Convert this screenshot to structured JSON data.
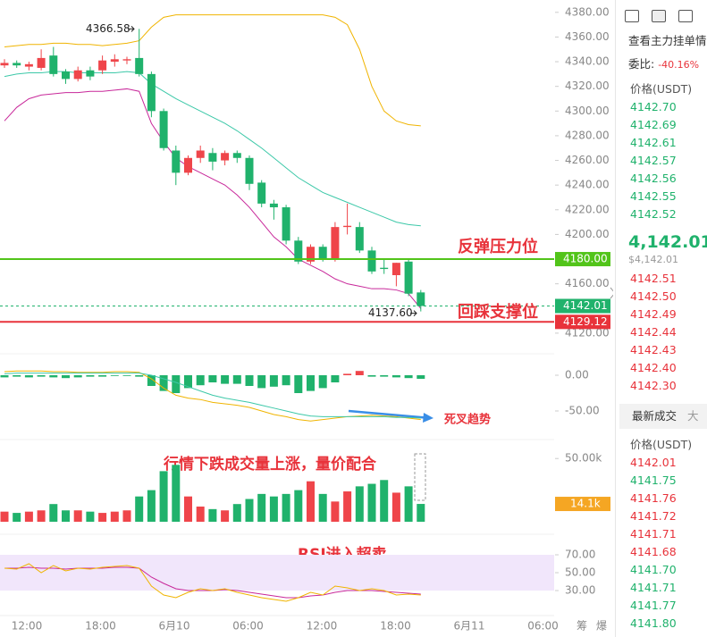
{
  "chart_data": {
    "type": "candlestick",
    "up_color": "#ef454a",
    "down_color": "#20b26c",
    "ylim": [
      4104,
      4390
    ],
    "yticks": [
      {
        "value": 4380,
        "label": "4380.00"
      },
      {
        "value": 4360,
        "label": "4360.00"
      },
      {
        "value": 4340,
        "label": "4340.00"
      },
      {
        "value": 4320,
        "label": "4320.00"
      },
      {
        "value": 4300,
        "label": "4300.00"
      },
      {
        "value": 4280,
        "label": "4280.00"
      },
      {
        "value": 4260,
        "label": "4260.00"
      },
      {
        "value": 4240,
        "label": "4240.00"
      },
      {
        "value": 4220,
        "label": "4220.00"
      },
      {
        "value": 4200,
        "label": "4200.00"
      },
      {
        "value": 4160,
        "label": "4160.00"
      },
      {
        "value": 4120,
        "label": "4120.00"
      }
    ],
    "candles": [
      {
        "open": 4337,
        "high": 4342,
        "low": 4335,
        "close": 4339
      },
      {
        "open": 4339,
        "high": 4341,
        "low": 4335,
        "close": 4337
      },
      {
        "open": 4336,
        "high": 4340,
        "low": 4333,
        "close": 4338
      },
      {
        "open": 4335,
        "high": 4350,
        "low": 4333,
        "close": 4343
      },
      {
        "open": 4345,
        "high": 4352,
        "low": 4328,
        "close": 4330
      },
      {
        "open": 4332,
        "high": 4334,
        "low": 4322,
        "close": 4326
      },
      {
        "open": 4326,
        "high": 4336,
        "low": 4324,
        "close": 4333
      },
      {
        "open": 4333,
        "high": 4336,
        "low": 4325,
        "close": 4328
      },
      {
        "open": 4333,
        "high": 4345,
        "low": 4330,
        "close": 4341
      },
      {
        "open": 4340,
        "high": 4346,
        "low": 4336,
        "close": 4342
      },
      {
        "open": 4341,
        "high": 4344,
        "low": 4338,
        "close": 4342
      },
      {
        "open": 4343,
        "high": 4366.58,
        "low": 4328,
        "close": 4330
      },
      {
        "open": 4330,
        "high": 4332,
        "low": 4295,
        "close": 4300
      },
      {
        "open": 4300,
        "high": 4302,
        "low": 4268,
        "close": 4270
      },
      {
        "open": 4268,
        "high": 4272,
        "low": 4240,
        "close": 4250
      },
      {
        "open": 4250,
        "high": 4264,
        "low": 4248,
        "close": 4262
      },
      {
        "open": 4262,
        "high": 4272,
        "low": 4258,
        "close": 4268
      },
      {
        "open": 4266,
        "high": 4270,
        "low": 4252,
        "close": 4259
      },
      {
        "open": 4260,
        "high": 4268,
        "low": 4256,
        "close": 4266
      },
      {
        "open": 4266,
        "high": 4268,
        "low": 4258,
        "close": 4262
      },
      {
        "open": 4262,
        "high": 4264,
        "low": 4236,
        "close": 4241
      },
      {
        "open": 4242,
        "high": 4244,
        "low": 4222,
        "close": 4225
      },
      {
        "open": 4225,
        "high": 4228,
        "low": 4212,
        "close": 4222
      },
      {
        "open": 4222,
        "high": 4224,
        "low": 4192,
        "close": 4195
      },
      {
        "open": 4195,
        "high": 4198,
        "low": 4176,
        "close": 4178
      },
      {
        "open": 4178,
        "high": 4192,
        "low": 4176,
        "close": 4190
      },
      {
        "open": 4190,
        "high": 4192,
        "low": 4178,
        "close": 4180
      },
      {
        "open": 4180,
        "high": 4210,
        "low": 4178,
        "close": 4206
      },
      {
        "open": 4206,
        "high": 4225,
        "low": 4200,
        "close": 4207
      },
      {
        "open": 4206,
        "high": 4210,
        "low": 4185,
        "close": 4187
      },
      {
        "open": 4187,
        "high": 4190,
        "low": 4168,
        "close": 4170
      },
      {
        "open": 4173,
        "high": 4180,
        "low": 4168,
        "close": 4172
      },
      {
        "open": 4167,
        "high": 4177,
        "low": 4158,
        "close": 4177
      },
      {
        "open": 4178,
        "high": 4180,
        "low": 4150,
        "close": 4152
      },
      {
        "open": 4153,
        "high": 4155,
        "low": 4137.6,
        "close": 4142.01
      }
    ],
    "bands": [
      {
        "color": "#f0b400",
        "values": [
          4352,
          4353,
          4354,
          4354,
          4355,
          4355,
          4354,
          4354,
          4353,
          4354,
          4355,
          4357,
          4368,
          4376,
          4378,
          4378,
          4378,
          4378,
          4378,
          4378,
          4378,
          4378,
          4378,
          4378,
          4378,
          4378,
          4378,
          4376,
          4370,
          4350,
          4320,
          4300,
          4292,
          4289,
          4288
        ]
      },
      {
        "color": "#3cc8a8",
        "values": [
          4328,
          4330,
          4331,
          4331,
          4332,
          4332,
          4331,
          4331,
          4331,
          4331,
          4332,
          4331,
          4322,
          4316,
          4310,
          4305,
          4300,
          4295,
          4290,
          4284,
          4277,
          4270,
          4262,
          4254,
          4246,
          4240,
          4234,
          4230,
          4226,
          4222,
          4218,
          4214,
          4210,
          4208,
          4207
        ]
      },
      {
        "color": "#c8289a",
        "values": [
          4292,
          4303,
          4310,
          4313,
          4314,
          4315,
          4315,
          4316,
          4316,
          4317,
          4318,
          4316,
          4290,
          4275,
          4262,
          4255,
          4250,
          4245,
          4240,
          4232,
          4222,
          4210,
          4198,
          4190,
          4180,
          4175,
          4170,
          4164,
          4160,
          4158,
          4156,
          4156,
          4155,
          4152,
          4140
        ]
      }
    ],
    "high_marker": {
      "value": 4366.58,
      "label": "4366.58"
    },
    "low_marker": {
      "value": 4137.6,
      "label": "4137.60"
    },
    "levels": [
      {
        "value": 4180,
        "label": "4180.00",
        "color": "#52c41a"
      },
      {
        "value": 4142.01,
        "label": "4142.01",
        "color": "#20b26c",
        "dashed": true
      },
      {
        "value": 4129.12,
        "label": "4129.12",
        "color": "#e8333b"
      }
    ],
    "annotations": [
      {
        "text": "反弹压力位",
        "color": "#e8333b"
      },
      {
        "text": "回踩支撑位",
        "color": "#e8333b"
      },
      {
        "text": "死叉趋势",
        "color": "#e8333b"
      },
      {
        "text": "行情下跌成交量上涨，量价配合",
        "color": "#e8333b"
      },
      {
        "text": "RSI进入超卖",
        "color": "#e8333b"
      }
    ],
    "macd": {
      "ylim": [
        -87.5,
        27.5
      ],
      "yticks": [
        {
          "value": 0,
          "label": "0.00"
        },
        {
          "value": -50,
          "label": "-50.00"
        }
      ],
      "histogram": [
        -3,
        -2,
        -3,
        -2,
        -3,
        -4,
        -3,
        -2,
        -2,
        -1,
        -1,
        -2,
        -15,
        -22,
        -25,
        -18,
        -14,
        -10,
        -12,
        -12,
        -15,
        -18,
        -16,
        -14,
        -25,
        -22,
        -18,
        -10,
        2,
        6,
        -2,
        -2,
        -3,
        -4,
        -5
      ],
      "lines": [
        {
          "color": "#f0b400",
          "values": [
            5,
            6,
            6,
            6,
            5,
            5,
            4,
            4,
            4,
            5,
            5,
            4,
            -5,
            -18,
            -28,
            -32,
            -34,
            -38,
            -40,
            -42,
            -45,
            -50,
            -55,
            -58,
            -62,
            -64,
            -62,
            -60,
            -58,
            -57,
            -56,
            -57,
            -58,
            -60,
            -62
          ]
        },
        {
          "color": "#3cc8a8",
          "values": [
            2,
            3,
            3,
            3,
            3,
            3,
            3,
            3,
            3,
            3,
            3,
            3,
            0,
            -5,
            -10,
            -16,
            -22,
            -28,
            -32,
            -35,
            -38,
            -42,
            -46,
            -50,
            -54,
            -57,
            -58,
            -58,
            -58,
            -58,
            -58,
            -58,
            -59,
            -59,
            -60
          ]
        }
      ]
    },
    "volume": {
      "ylim": [
        0,
        65
      ],
      "yticks": [
        {
          "value": 50,
          "label": "50.00k"
        }
      ],
      "values": [
        8,
        7,
        8,
        9,
        14,
        9,
        9,
        8,
        7,
        8,
        9,
        20,
        25,
        40,
        45,
        20,
        12,
        10,
        9,
        14,
        18,
        22,
        20,
        22,
        25,
        32,
        22,
        16,
        24,
        28,
        30,
        33,
        23,
        28,
        14.1
      ],
      "last": {
        "value": 14.1,
        "label": "14.1k",
        "color": "#f5a623"
      }
    },
    "rsi": {
      "ylim": [
        5,
        91
      ],
      "yticks": [
        {
          "value": 70,
          "label": "70.00"
        },
        {
          "value": 50,
          "label": "50.00"
        },
        {
          "value": 30,
          "label": "30.00"
        }
      ],
      "band": [
        30,
        70
      ],
      "band_color": "#f1e6fb",
      "lines": [
        {
          "color": "#c8289a",
          "values": [
            55,
            55,
            56,
            55,
            55,
            54,
            55,
            55,
            55,
            56,
            56,
            55,
            45,
            38,
            32,
            30,
            30,
            30,
            31,
            30,
            28,
            26,
            24,
            22,
            22,
            24,
            25,
            28,
            30,
            30,
            30,
            29,
            28,
            27,
            26
          ]
        },
        {
          "color": "#f0b400",
          "values": [
            55,
            54,
            60,
            50,
            58,
            52,
            55,
            54,
            56,
            57,
            58,
            55,
            35,
            25,
            22,
            28,
            32,
            30,
            32,
            28,
            25,
            22,
            20,
            18,
            22,
            28,
            25,
            35,
            33,
            30,
            32,
            30,
            25,
            26,
            25
          ]
        }
      ]
    },
    "x_labels": [
      "12:00",
      "18:00",
      "6月10",
      "06:00",
      "12:00",
      "18:00",
      "6月11",
      "06:00"
    ],
    "corner_labels": [
      "筹",
      "爆"
    ]
  },
  "order_panel": {
    "title": "查看主力挂单情",
    "ratio_label": "委比:",
    "ratio": "-40.16%",
    "price_header": "价格(USDT)",
    "asks": [
      "4142.70",
      "4142.69",
      "4142.61",
      "4142.57",
      "4142.56",
      "4142.55",
      "4142.52"
    ],
    "last_price": "4,142.01",
    "last_price_usd": "$4,142.01",
    "bids": [
      "4142.51",
      "4142.50",
      "4142.49",
      "4142.44",
      "4142.43",
      "4142.40",
      "4142.30"
    ],
    "trades_tab": "最新成交",
    "trades_tab2": "大",
    "trades_header": "价格(USDT)",
    "buy_color": "#20b26c",
    "sell_color": "#e8333b",
    "trades": [
      {
        "price": "4142.01",
        "side": "sell"
      },
      {
        "price": "4141.75",
        "side": "buy"
      },
      {
        "price": "4141.76",
        "side": "sell"
      },
      {
        "price": "4141.72",
        "side": "sell"
      },
      {
        "price": "4141.71",
        "side": "sell"
      },
      {
        "price": "4141.68",
        "side": "sell"
      },
      {
        "price": "4141.70",
        "side": "buy"
      },
      {
        "price": "4141.71",
        "side": "buy"
      },
      {
        "price": "4141.77",
        "side": "buy"
      },
      {
        "price": "4141.80",
        "side": "buy"
      }
    ]
  }
}
